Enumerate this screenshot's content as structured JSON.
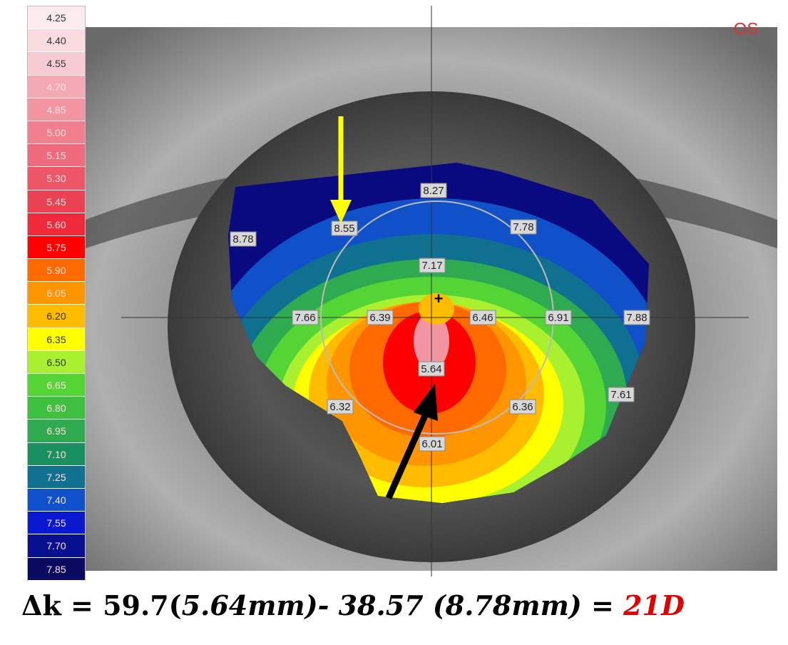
{
  "scale": [
    {
      "label": "4.25",
      "color": "#fbeaee"
    },
    {
      "label": "4.40",
      "color": "#f9dbe0"
    },
    {
      "label": "4.55",
      "color": "#f7cbd2"
    },
    {
      "label": "4.70",
      "color": "#f4aab5"
    },
    {
      "label": "4.85",
      "color": "#f295a2"
    },
    {
      "label": "5.00",
      "color": "#f08090"
    },
    {
      "label": "5.15",
      "color": "#ee6b7d"
    },
    {
      "label": "5.30",
      "color": "#ec5668"
    },
    {
      "label": "5.45",
      "color": "#ea4253"
    },
    {
      "label": "5.60",
      "color": "#f02a3a"
    },
    {
      "label": "5.75",
      "color": "#ff0000"
    },
    {
      "label": "5.90",
      "color": "#ff6a00"
    },
    {
      "label": "6.05",
      "color": "#ff9500"
    },
    {
      "label": "6.20",
      "color": "#ffbb00"
    },
    {
      "label": "6.35",
      "color": "#ffff00"
    },
    {
      "label": "6.50",
      "color": "#a8f030"
    },
    {
      "label": "6.65",
      "color": "#55d535"
    },
    {
      "label": "6.80",
      "color": "#40c040"
    },
    {
      "label": "6.95",
      "color": "#30aa50"
    },
    {
      "label": "7.10",
      "color": "#1a9060"
    },
    {
      "label": "7.25",
      "color": "#107090"
    },
    {
      "label": "7.40",
      "color": "#1050c8"
    },
    {
      "label": "7.55",
      "color": "#0a18d0"
    },
    {
      "label": "7.70",
      "color": "#081090"
    },
    {
      "label": "7.85",
      "color": "#0a0a60"
    }
  ],
  "eye": "OS",
  "map_labels": [
    "8.27",
    "8.55",
    "7.78",
    "8.78",
    "7.17",
    "7.66",
    "6.39",
    "6.46",
    "6.91",
    "7.88",
    "5.64",
    "6.32",
    "6.36",
    "7.61",
    "6.01"
  ],
  "formula": [
    "Δk = 59.7(",
    "5.64mm)- 38.57 (8.78mm) = ",
    "21D"
  ]
}
